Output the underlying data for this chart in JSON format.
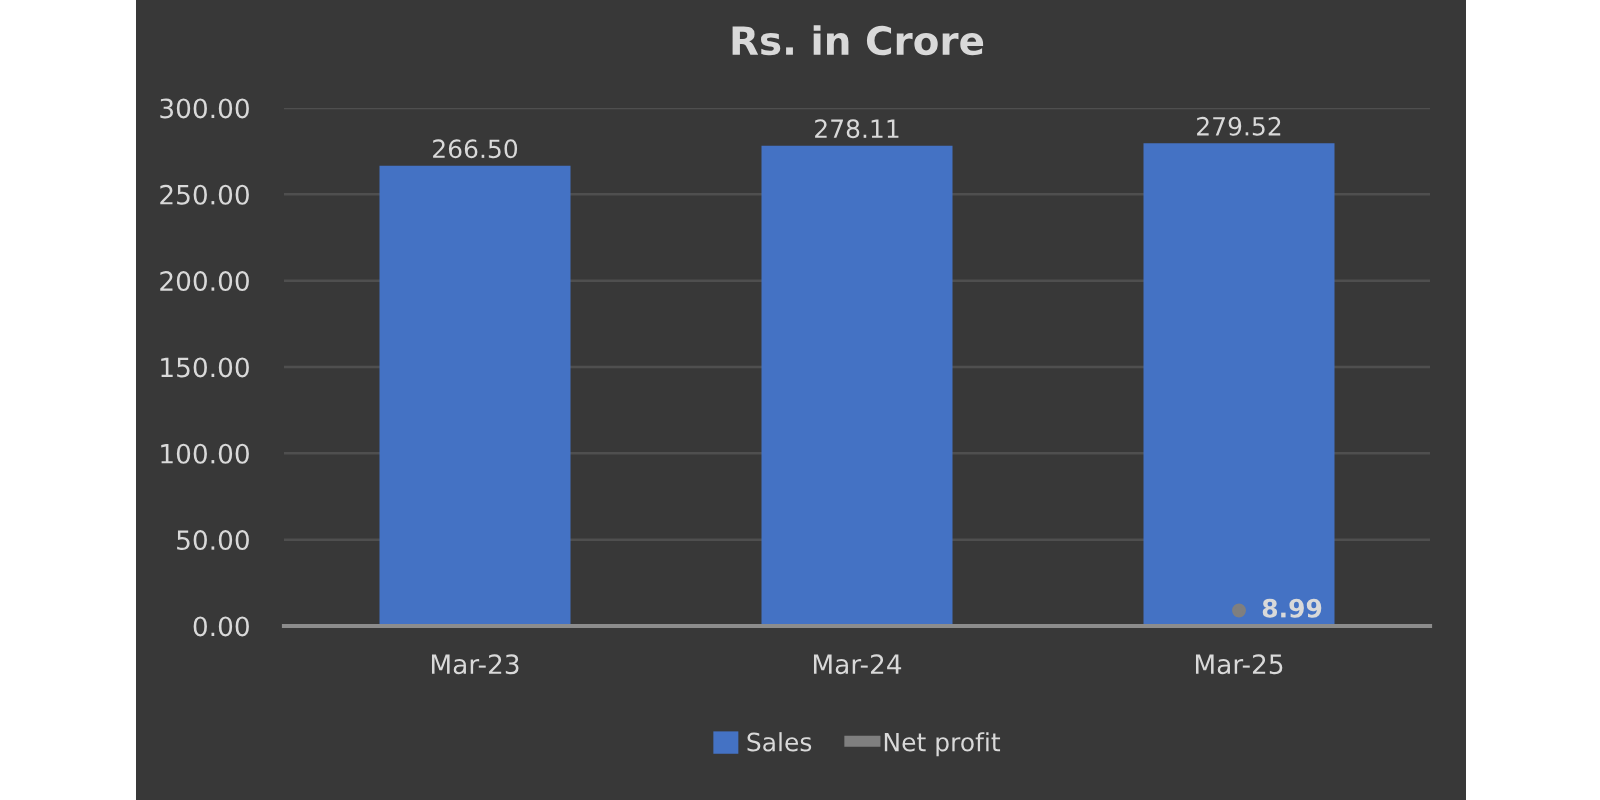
{
  "chart_data": {
    "type": "bar",
    "title": "Rs. in Crore",
    "categories": [
      "Mar-23",
      "Mar-24",
      "Mar-25"
    ],
    "series": [
      {
        "name": "Sales",
        "color": "#4472c4",
        "values": [
          266.5,
          278.11,
          279.52
        ],
        "value_labels": [
          "266.50",
          "278.11",
          "279.52"
        ]
      },
      {
        "name": "Net profit",
        "type": "line",
        "color": "#7f7f7f",
        "marker": "circle",
        "values": [
          null,
          null,
          8.99
        ],
        "value_labels": [
          null,
          null,
          "8.99"
        ]
      }
    ],
    "ylim": [
      0,
      300
    ],
    "yticks": [
      {
        "value": 0,
        "label": "0.00"
      },
      {
        "value": 50,
        "label": "50.00"
      },
      {
        "value": 100,
        "label": "100.00"
      },
      {
        "value": 150,
        "label": "150.00"
      },
      {
        "value": 200,
        "label": "200.00"
      },
      {
        "value": 250,
        "label": "250.00"
      },
      {
        "value": 300,
        "label": "300.00"
      }
    ],
    "grid": "y",
    "legend": "bottom"
  }
}
